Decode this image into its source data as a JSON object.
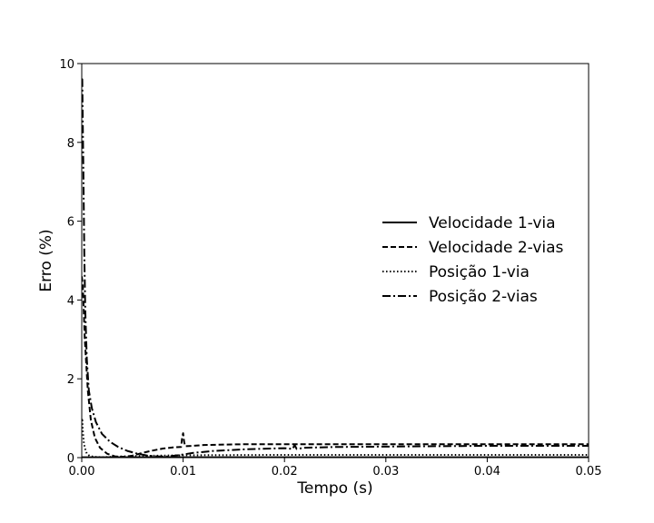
{
  "chart_data": {
    "type": "line",
    "title": "",
    "xlabel": "Tempo (s)",
    "ylabel": "Erro (%)",
    "xlim": [
      0,
      0.05
    ],
    "ylim": [
      0,
      10
    ],
    "xticks": [
      0,
      0.01,
      0.02,
      0.03,
      0.04,
      0.05
    ],
    "xtick_labels": [
      "0.00",
      "0.01",
      "0.02",
      "0.03",
      "0.04",
      "0.05"
    ],
    "yticks": [
      0,
      2,
      4,
      6,
      8,
      10
    ],
    "ytick_labels": [
      "0",
      "2",
      "4",
      "6",
      "8",
      "10"
    ],
    "grid": false,
    "legend_position": "center-right",
    "series": [
      {
        "name": "Velocidade 1-via",
        "line_style": "solid",
        "color": "#000000",
        "x": [
          0,
          0.05
        ],
        "y": [
          0.01,
          0.01
        ]
      },
      {
        "name": "Velocidade 2-vias",
        "line_style": "dashed",
        "color": "#000000",
        "x": [
          0,
          0.0001,
          0.0003,
          0.0006,
          0.0009,
          0.0013,
          0.0018,
          0.0025,
          0.0033,
          0.0042,
          0.005,
          0.006,
          0.007,
          0.008,
          0.009,
          0.0098,
          0.0099,
          0.01,
          0.0101,
          0.0102,
          0.011,
          0.012,
          0.014,
          0.016,
          0.02,
          0.025,
          0.03,
          0.04,
          0.05
        ],
        "y": [
          4.6,
          4.4,
          3.0,
          1.7,
          0.95,
          0.5,
          0.25,
          0.1,
          0.03,
          0.02,
          0.05,
          0.12,
          0.18,
          0.23,
          0.26,
          0.27,
          0.5,
          0.62,
          0.4,
          0.29,
          0.3,
          0.32,
          0.33,
          0.34,
          0.34,
          0.34,
          0.34,
          0.34,
          0.34
        ]
      },
      {
        "name": "Posição 1-via",
        "line_style": "dotted",
        "color": "#000000",
        "x": [
          0,
          5e-05,
          0.0001,
          0.0002,
          0.0003,
          0.0005,
          0.0008,
          0.0012,
          0.002,
          0.003,
          0.005,
          0.01,
          0.02,
          0.03,
          0.04,
          0.05
        ],
        "y": [
          0.95,
          1.0,
          0.7,
          0.4,
          0.25,
          0.1,
          0.04,
          0.02,
          0.01,
          0.02,
          0.04,
          0.06,
          0.07,
          0.07,
          0.07,
          0.07
        ]
      },
      {
        "name": "Posição 2-vias",
        "line_style": "dashdot",
        "color": "#000000",
        "x": [
          0,
          5e-05,
          0.00015,
          0.00025,
          0.00035,
          0.0005,
          0.0007,
          0.001,
          0.0014,
          0.002,
          0.0028,
          0.0036,
          0.0045,
          0.0055,
          0.0065,
          0.0075,
          0.0085,
          0.0095,
          0.011,
          0.013,
          0.016,
          0.02,
          0.0208,
          0.021,
          0.0212,
          0.022,
          0.025,
          0.03,
          0.035,
          0.04,
          0.05
        ],
        "y": [
          9.6,
          9.6,
          7.5,
          5.2,
          3.7,
          2.5,
          1.7,
          1.25,
          0.9,
          0.6,
          0.4,
          0.27,
          0.17,
          0.1,
          0.05,
          0.03,
          0.03,
          0.06,
          0.12,
          0.17,
          0.21,
          0.24,
          0.22,
          0.32,
          0.22,
          0.25,
          0.27,
          0.28,
          0.29,
          0.3,
          0.3
        ]
      }
    ]
  }
}
